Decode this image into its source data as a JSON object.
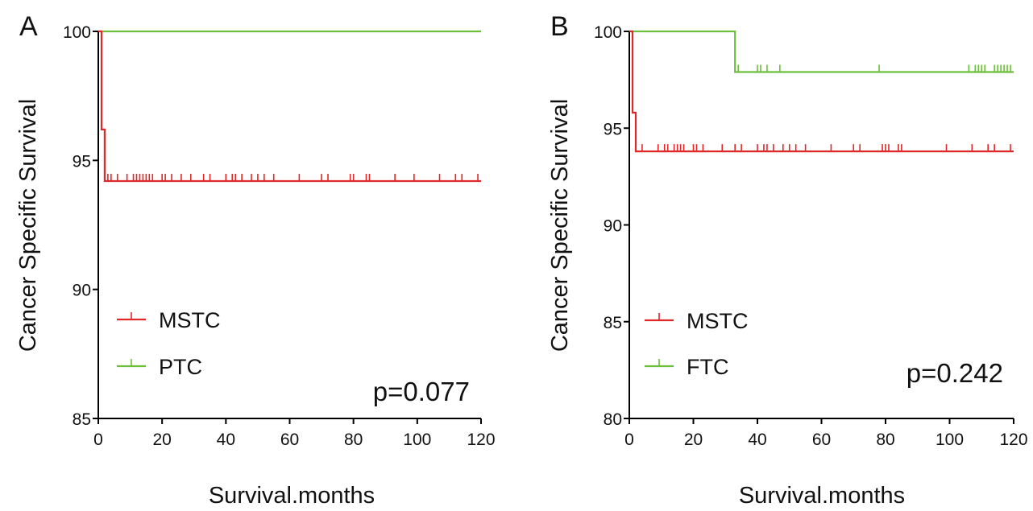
{
  "colors": {
    "mstc": "#e02828",
    "comparison": "#6cbf3a",
    "axis": "#000000"
  },
  "chart_data": [
    {
      "panel": "A",
      "type": "line",
      "title": "",
      "xlabel": "Survival.months",
      "ylabel": "Cancer Specific Survival",
      "xlim": [
        0,
        120
      ],
      "ylim": [
        85,
        100
      ],
      "xticks": [
        0,
        20,
        40,
        60,
        80,
        100,
        120
      ],
      "yticks": [
        85,
        90,
        95,
        100
      ],
      "grid": false,
      "legend_position": "bottom-left",
      "annotation": "p=0.077",
      "series": [
        {
          "name": "MSTC",
          "color_key": "mstc",
          "steps": [
            [
              0,
              100
            ],
            [
              1,
              100
            ],
            [
              1,
              96.2
            ],
            [
              2,
              96.2
            ],
            [
              2,
              94.2
            ],
            [
              120,
              94.2
            ]
          ],
          "censor_x": [
            3,
            4,
            6,
            9,
            11,
            12,
            13,
            14,
            15,
            16,
            17,
            20,
            21,
            23,
            26,
            29,
            33,
            35,
            40,
            42,
            43,
            45,
            48,
            50,
            52,
            55,
            63,
            70,
            72,
            79,
            80,
            84,
            85,
            93,
            99,
            107,
            112,
            114,
            119
          ]
        },
        {
          "name": "PTC",
          "color_key": "comparison",
          "steps": [
            [
              0,
              100
            ],
            [
              120,
              100
            ]
          ],
          "censor_x": []
        }
      ]
    },
    {
      "panel": "B",
      "type": "line",
      "title": "",
      "xlabel": "Survival.months",
      "ylabel": "Cancer Specific Survival",
      "xlim": [
        0,
        120
      ],
      "ylim": [
        80,
        100
      ],
      "xticks": [
        0,
        20,
        40,
        60,
        80,
        100,
        120
      ],
      "yticks": [
        80,
        85,
        90,
        95,
        100
      ],
      "grid": false,
      "legend_position": "bottom-left",
      "annotation": "p=0.242",
      "series": [
        {
          "name": "MSTC",
          "color_key": "mstc",
          "steps": [
            [
              0,
              100
            ],
            [
              1,
              100
            ],
            [
              1,
              95.8
            ],
            [
              2,
              95.8
            ],
            [
              2,
              93.8
            ],
            [
              120,
              93.8
            ]
          ],
          "censor_x": [
            4,
            9,
            11,
            12,
            14,
            15,
            16,
            17,
            20,
            21,
            23,
            29,
            33,
            35,
            40,
            42,
            43,
            45,
            48,
            50,
            52,
            55,
            63,
            70,
            72,
            79,
            80,
            81,
            84,
            85,
            99,
            107,
            112,
            114,
            119
          ]
        },
        {
          "name": "FTC",
          "color_key": "comparison",
          "steps": [
            [
              0,
              100
            ],
            [
              33,
              100
            ],
            [
              33,
              97.9
            ],
            [
              120,
              97.9
            ]
          ],
          "censor_x": [
            34,
            40,
            41,
            43,
            47,
            78,
            106,
            108,
            109,
            110,
            111,
            114,
            115,
            116,
            117,
            118,
            119
          ]
        }
      ]
    }
  ]
}
